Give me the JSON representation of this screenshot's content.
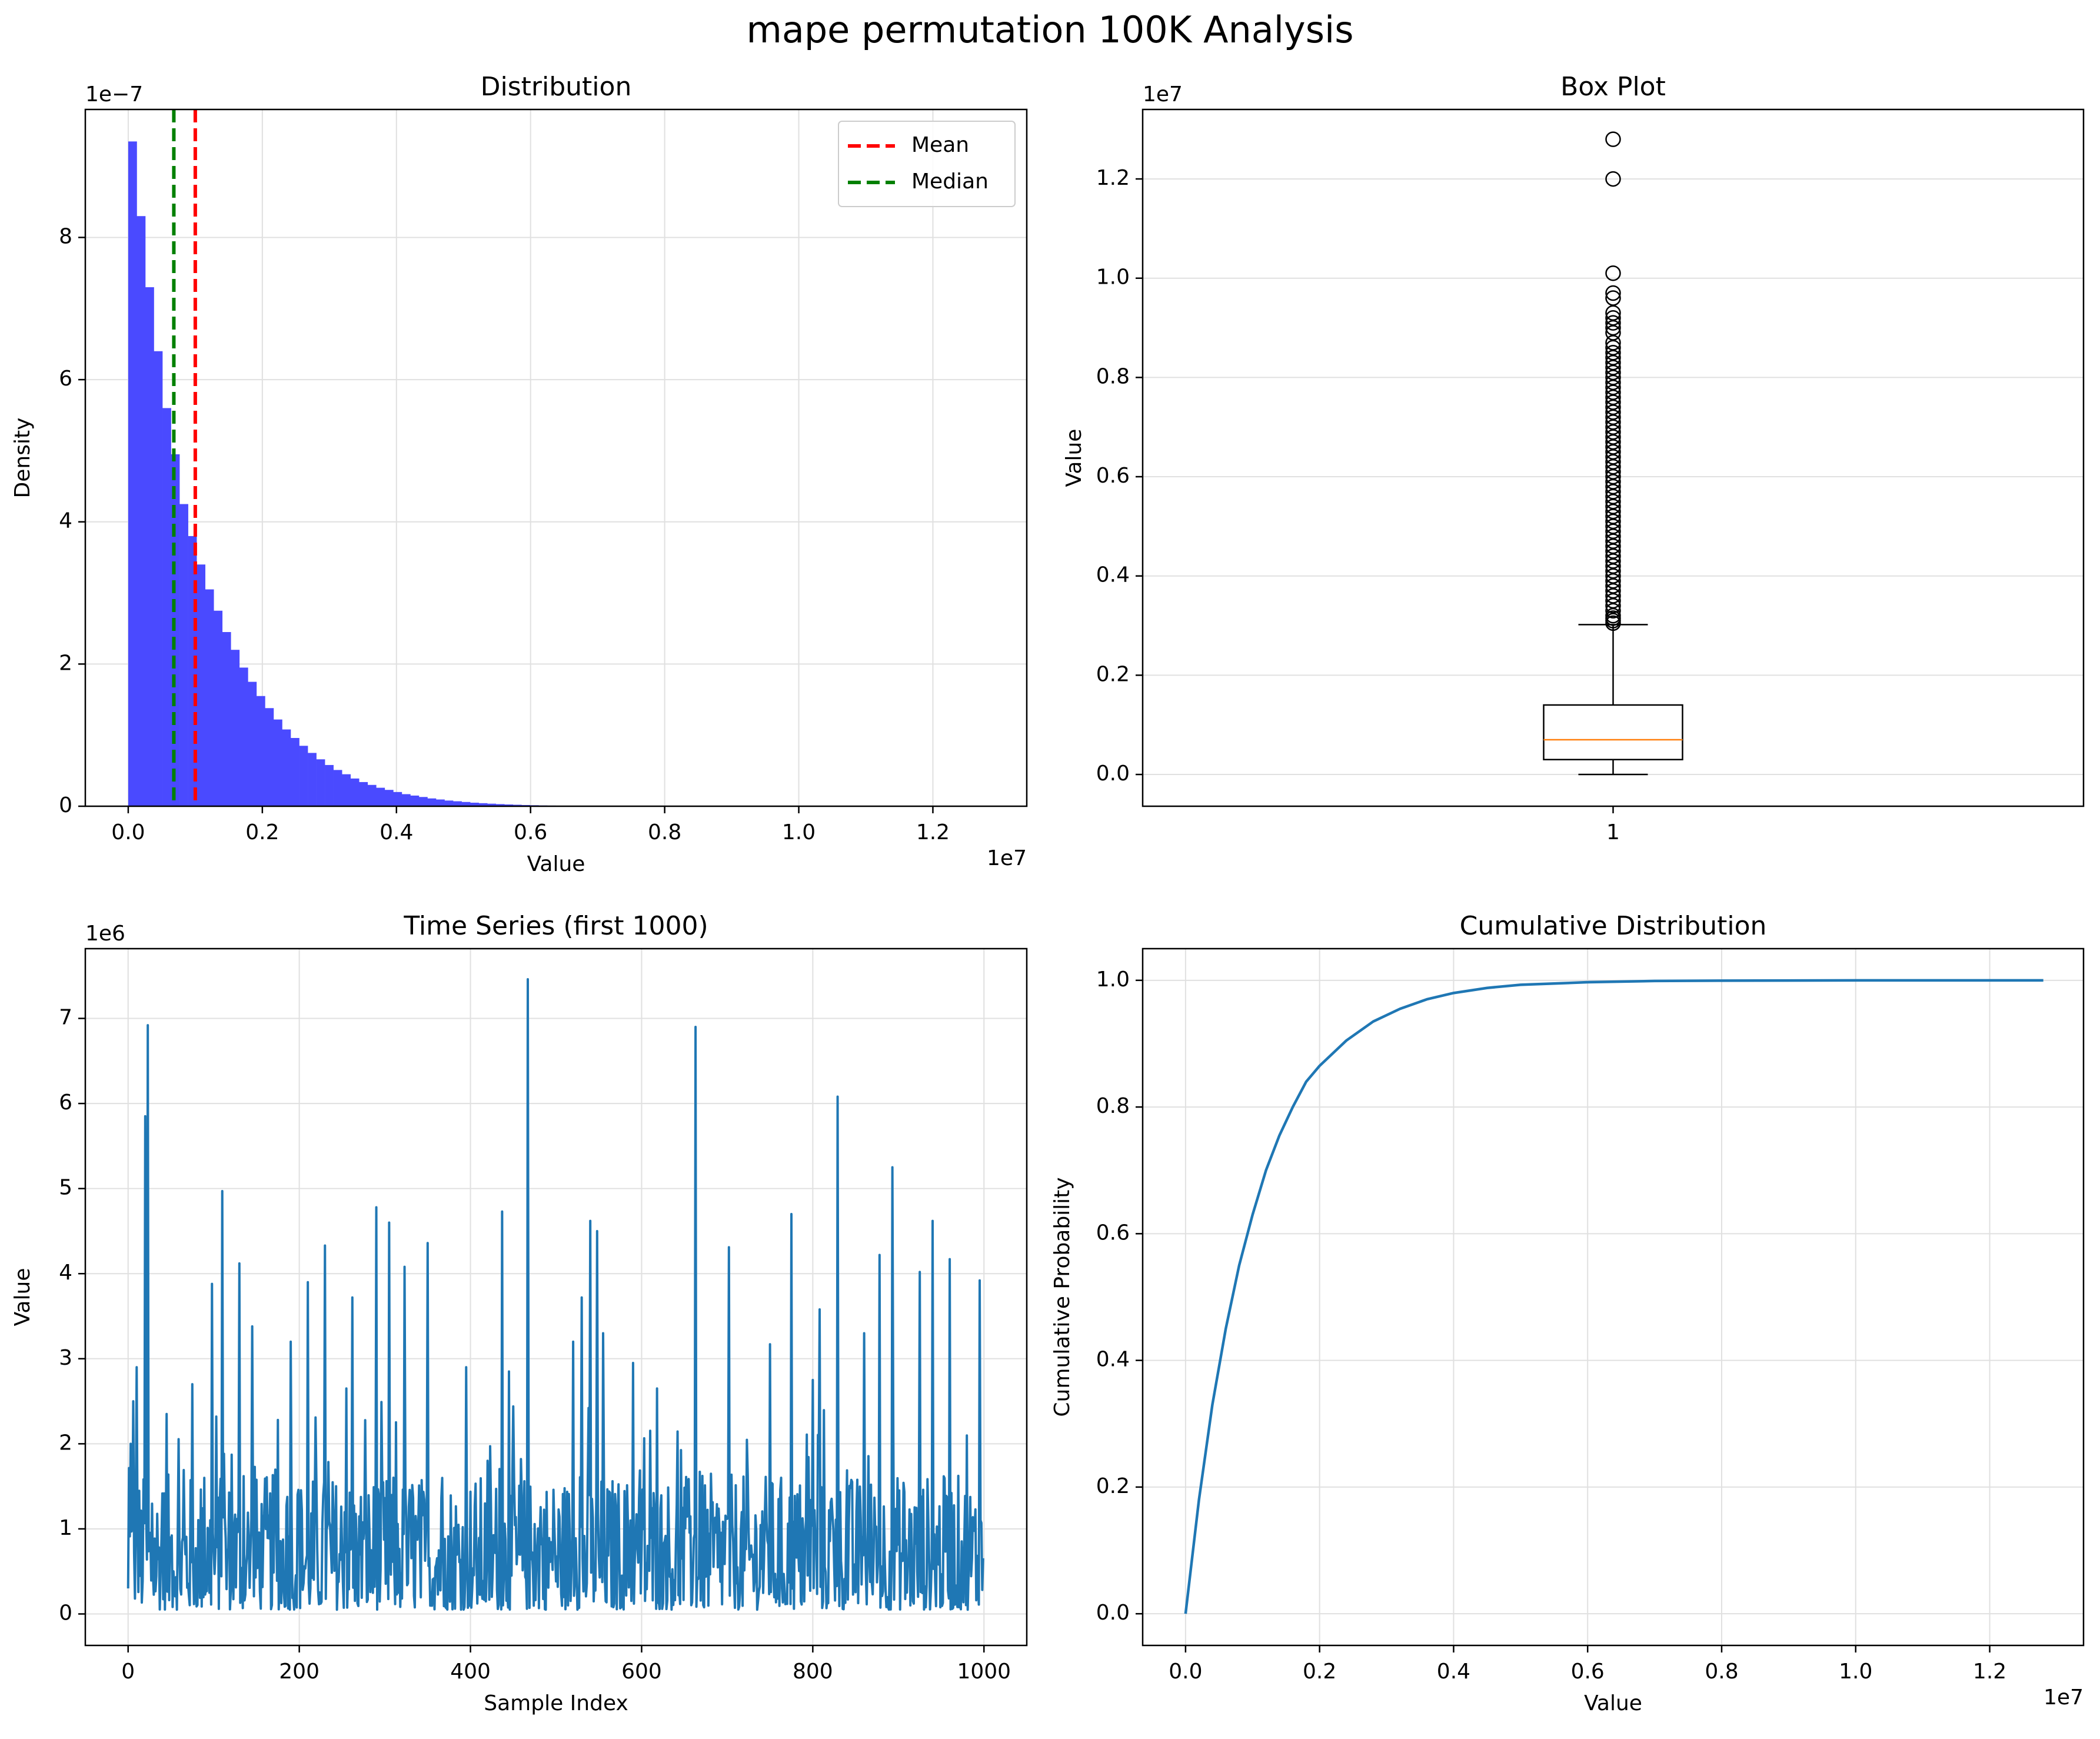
{
  "figure_title": "mape permutation 100K Analysis",
  "colors": {
    "hist": "#4a4aff",
    "mean_line": "#ff0000",
    "median_line": "#008000",
    "series": "#1f77b4",
    "median_box": "#ff7f0e",
    "grid": "#e0e0e0"
  },
  "chart_data": [
    {
      "type": "bar",
      "title": "Distribution",
      "xlabel": "Value",
      "ylabel": "Density",
      "x_scale_label": "1e7",
      "y_scale_label": "1e−7",
      "xlim": [
        -0.064,
        1.34
      ],
      "ylim": [
        0,
        9.8
      ],
      "xticks": [
        0.0,
        0.2,
        0.4,
        0.6,
        0.8,
        1.0,
        1.2
      ],
      "xtick_labels": [
        "0.0",
        "0.2",
        "0.4",
        "0.6",
        "0.8",
        "1.0",
        "1.2"
      ],
      "yticks": [
        0,
        2,
        4,
        6,
        8
      ],
      "ytick_labels": [
        "0",
        "2",
        "4",
        "6",
        "8"
      ],
      "bin_start": 0.0,
      "bin_width": 0.01275,
      "values": [
        9.35,
        8.3,
        7.3,
        6.4,
        5.6,
        4.95,
        4.25,
        3.8,
        3.4,
        3.05,
        2.75,
        2.45,
        2.2,
        1.95,
        1.75,
        1.55,
        1.38,
        1.22,
        1.08,
        0.96,
        0.85,
        0.75,
        0.66,
        0.58,
        0.51,
        0.45,
        0.39,
        0.34,
        0.3,
        0.26,
        0.23,
        0.2,
        0.17,
        0.15,
        0.13,
        0.11,
        0.095,
        0.08,
        0.07,
        0.06,
        0.05,
        0.043,
        0.036,
        0.03,
        0.025,
        0.021,
        0.017,
        0.014,
        0.011,
        0.009,
        0.007,
        0.005
      ],
      "mean": 0.1,
      "median": 0.068,
      "legend": [
        {
          "label": "Mean",
          "color": "#ff0000"
        },
        {
          "label": "Median",
          "color": "#008000"
        }
      ],
      "legend_position": "upper right",
      "grid": true
    },
    {
      "type": "box",
      "title": "Box Plot",
      "ylabel": "Value",
      "y_scale_label": "1e7",
      "category": "1",
      "ylim": [
        -0.064,
        1.34
      ],
      "yticks": [
        0.0,
        0.2,
        0.4,
        0.6,
        0.8,
        1.0,
        1.2
      ],
      "ytick_labels": [
        "0.0",
        "0.2",
        "0.4",
        "0.6",
        "0.8",
        "1.0",
        "1.2"
      ],
      "whisker_low": 0.0,
      "q1": 0.03,
      "median": 0.07,
      "q3": 0.14,
      "whisker_high": 0.302,
      "outliers": [
        0.305,
        0.31,
        0.315,
        0.32,
        0.33,
        0.34,
        0.35,
        0.36,
        0.37,
        0.38,
        0.39,
        0.4,
        0.41,
        0.42,
        0.43,
        0.44,
        0.45,
        0.46,
        0.47,
        0.48,
        0.49,
        0.5,
        0.51,
        0.52,
        0.53,
        0.54,
        0.55,
        0.56,
        0.57,
        0.58,
        0.59,
        0.6,
        0.61,
        0.62,
        0.63,
        0.64,
        0.65,
        0.66,
        0.67,
        0.68,
        0.69,
        0.7,
        0.71,
        0.72,
        0.73,
        0.74,
        0.75,
        0.76,
        0.77,
        0.78,
        0.79,
        0.8,
        0.81,
        0.82,
        0.83,
        0.84,
        0.85,
        0.86,
        0.87,
        0.89,
        0.9,
        0.91,
        0.92,
        0.93,
        0.96,
        0.97,
        1.01,
        1.2,
        1.28
      ],
      "grid": true
    },
    {
      "type": "line",
      "title": "Time Series (first 1000)",
      "xlabel": "Sample Index",
      "ylabel": "Value",
      "y_scale_label": "1e6",
      "xlim": [
        -50,
        1050
      ],
      "ylim": [
        -0.37,
        7.82
      ],
      "xticks": [
        0,
        200,
        400,
        600,
        800,
        1000
      ],
      "xtick_labels": [
        "0",
        "200",
        "400",
        "600",
        "800",
        "1000"
      ],
      "yticks": [
        0,
        1,
        2,
        3,
        4,
        5,
        6,
        7
      ],
      "ytick_labels": [
        "0",
        "1",
        "2",
        "3",
        "4",
        "5",
        "6",
        "7"
      ],
      "spikes": [
        [
          3,
          2.0
        ],
        [
          6,
          2.5
        ],
        [
          10,
          2.9
        ],
        [
          20,
          5.85
        ],
        [
          23,
          6.92
        ],
        [
          45,
          2.35
        ],
        [
          75,
          2.7
        ],
        [
          98,
          3.88
        ],
        [
          110,
          4.97
        ],
        [
          130,
          4.12
        ],
        [
          145,
          3.38
        ],
        [
          175,
          2.28
        ],
        [
          190,
          3.2
        ],
        [
          210,
          3.9
        ],
        [
          230,
          4.33
        ],
        [
          255,
          2.65
        ],
        [
          262,
          3.72
        ],
        [
          290,
          4.78
        ],
        [
          305,
          4.6
        ],
        [
          323,
          4.08
        ],
        [
          350,
          4.36
        ],
        [
          395,
          2.9
        ],
        [
          420,
          1.8
        ],
        [
          437,
          4.73
        ],
        [
          445,
          2.85
        ],
        [
          467,
          7.46
        ],
        [
          520,
          3.2
        ],
        [
          530,
          3.72
        ],
        [
          540,
          4.62
        ],
        [
          548,
          4.5
        ],
        [
          555,
          3.3
        ],
        [
          590,
          2.95
        ],
        [
          618,
          2.65
        ],
        [
          663,
          6.9
        ],
        [
          702,
          4.31
        ],
        [
          750,
          3.17
        ],
        [
          775,
          4.7
        ],
        [
          800,
          2.75
        ],
        [
          808,
          3.58
        ],
        [
          829,
          6.08
        ],
        [
          860,
          3.3
        ],
        [
          878,
          4.22
        ],
        [
          893,
          5.25
        ],
        [
          925,
          4.02
        ],
        [
          940,
          4.62
        ],
        [
          960,
          4.17
        ],
        [
          995,
          3.92
        ]
      ],
      "grid": true
    },
    {
      "type": "line",
      "title": "Cumulative Distribution",
      "xlabel": "Value",
      "ylabel": "Cumulative Probability",
      "x_scale_label": "1e7",
      "xlim": [
        -0.064,
        1.34
      ],
      "ylim": [
        -0.05,
        1.05
      ],
      "xticks": [
        0.0,
        0.2,
        0.4,
        0.6,
        0.8,
        1.0,
        1.2
      ],
      "xtick_labels": [
        "0.0",
        "0.2",
        "0.4",
        "0.6",
        "0.8",
        "1.0",
        "1.2"
      ],
      "yticks": [
        0.0,
        0.2,
        0.4,
        0.6,
        0.8,
        1.0
      ],
      "ytick_labels": [
        "0.0",
        "0.2",
        "0.4",
        "0.6",
        "0.8",
        "1.0"
      ],
      "x": [
        0.0,
        0.02,
        0.04,
        0.06,
        0.08,
        0.1,
        0.12,
        0.14,
        0.16,
        0.18,
        0.2,
        0.24,
        0.28,
        0.32,
        0.36,
        0.4,
        0.45,
        0.5,
        0.6,
        0.7,
        0.8,
        1.0,
        1.2,
        1.28
      ],
      "y": [
        0.0,
        0.18,
        0.33,
        0.45,
        0.55,
        0.63,
        0.7,
        0.755,
        0.8,
        0.84,
        0.865,
        0.905,
        0.935,
        0.955,
        0.97,
        0.98,
        0.988,
        0.993,
        0.997,
        0.999,
        0.9995,
        1.0,
        1.0,
        1.0
      ],
      "grid": true
    }
  ]
}
